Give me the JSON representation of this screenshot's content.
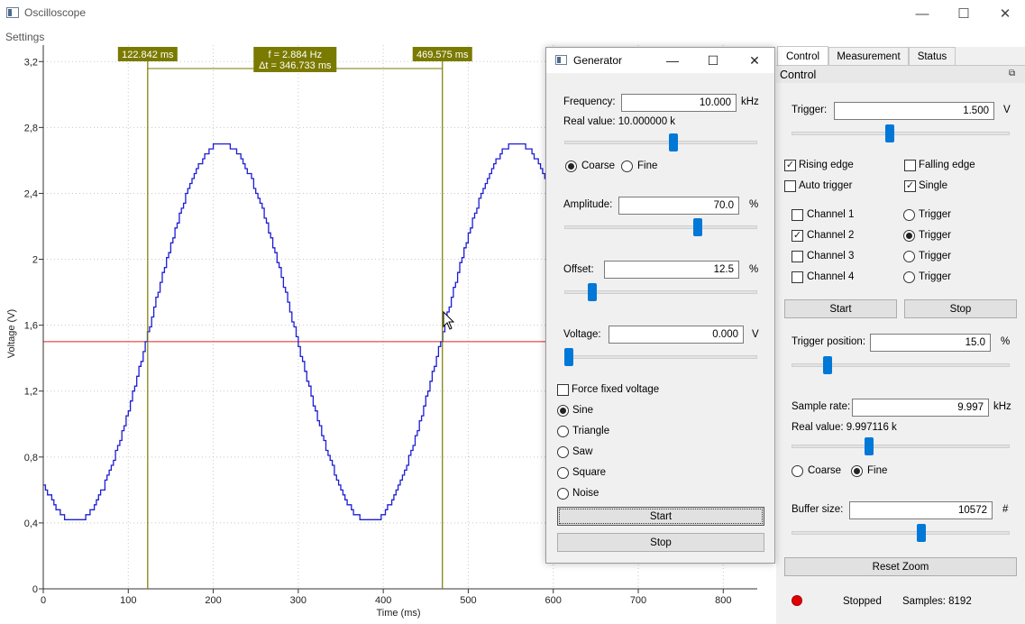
{
  "window": {
    "title": "Oscilloscope",
    "menu": {
      "settings": "Settings"
    },
    "controls": {
      "minimize": "—",
      "maximize": "☐",
      "close": "✕"
    }
  },
  "plot": {
    "y_axis_label": "Voltage (V)",
    "x_axis_label": "Time (ms)",
    "cursor_left": "122.842 ms",
    "cursor_right": "469.575 ms",
    "cursor_freq": "f = 2.884 Hz",
    "cursor_dt": "Δt = 346.733 ms",
    "colors": {
      "signal": "#1c1cd6",
      "trigger": "#e02020",
      "cursor": "#7a7a00",
      "grid": "#c8c8c8"
    }
  },
  "chart_data": {
    "type": "line",
    "xlabel": "Time (ms)",
    "ylabel": "Voltage (V)",
    "xlim": [
      0,
      840
    ],
    "ylim": [
      0,
      3.3
    ],
    "x_ticks": [
      "0",
      "100",
      "200",
      "300",
      "400",
      "500",
      "600",
      "700",
      "800"
    ],
    "y_ticks": [
      "0",
      "0,4",
      "0,8",
      "1,2",
      "1,6",
      "2",
      "2,4",
      "2,8",
      "3,2"
    ],
    "grid": true,
    "series": [
      {
        "points": [
          [
            0,
            0.69
          ],
          [
            38,
            0.41
          ],
          [
            80,
            0.68
          ],
          [
            123,
            1.5
          ],
          [
            165,
            2.33
          ],
          [
            210,
            2.71
          ],
          [
            253,
            2.33
          ],
          [
            296,
            1.5
          ],
          [
            339,
            0.68
          ],
          [
            384,
            0.41
          ],
          [
            426,
            0.68
          ],
          [
            469,
            1.5
          ],
          [
            512,
            2.33
          ],
          [
            557,
            2.71
          ],
          [
            600,
            2.61
          ]
        ]
      },
      {
        "points": [
          [
            0,
            1.5
          ],
          [
            840,
            1.5
          ]
        ]
      }
    ],
    "cursors_x": [
      122.842,
      469.575
    ]
  },
  "generator": {
    "title": "Generator",
    "frequency_label": "Frequency:",
    "frequency_value": "10.000",
    "frequency_unit": "kHz",
    "real_value": "Real value: 10.000000 k",
    "frequency_slider_level": 0.57,
    "coarse_label": "Coarse",
    "fine_label": "Fine",
    "amplitude_label": "Amplitude:",
    "amplitude_value": "70.0",
    "amplitude_unit": "%",
    "amplitude_slider_level": 0.7,
    "offset_label": "Offset:",
    "offset_value": "12.5",
    "offset_unit": "%",
    "offset_slider_level": 0.125,
    "voltage_label": "Voltage:",
    "voltage_value": "0.000",
    "voltage_unit": "V",
    "voltage_slider_level": 0.0,
    "force_fixed_label": "Force fixed voltage",
    "waveforms": [
      "Sine",
      "Triangle",
      "Saw",
      "Square",
      "Noise"
    ],
    "selected_waveform": "Sine",
    "start_label": "Start",
    "stop_label": "Stop"
  },
  "panel": {
    "tabs": [
      "Control",
      "Measurement",
      "Status"
    ],
    "active_tab": "Control",
    "dock_title": "Control",
    "trigger_label": "Trigger:",
    "trigger_value": "1.500",
    "trigger_unit": "V",
    "trigger_slider_level": 0.45,
    "rising_edge": "Rising edge",
    "falling_edge": "Falling edge",
    "auto_trigger": "Auto trigger",
    "single": "Single",
    "channels": [
      {
        "label": "Channel 1",
        "checked": false,
        "trigger_label": "Trigger",
        "trigger_selected": false
      },
      {
        "label": "Channel 2",
        "checked": true,
        "trigger_label": "Trigger",
        "trigger_selected": true
      },
      {
        "label": "Channel 3",
        "checked": false,
        "trigger_label": "Trigger",
        "trigger_selected": false
      },
      {
        "label": "Channel 4",
        "checked": false,
        "trigger_label": "Trigger",
        "trigger_selected": false
      }
    ],
    "start_label": "Start",
    "stop_label": "Stop",
    "trigger_position_label": "Trigger position:",
    "trigger_position_value": "15.0",
    "trigger_position_unit": "%",
    "trigger_position_level": 0.15,
    "sample_rate_label": "Sample rate:",
    "sample_rate_value": "9.997",
    "sample_rate_unit": "kHz",
    "sample_rate_real": "Real value: 9.997116 k",
    "sample_rate_level": 0.35,
    "coarse_label": "Coarse",
    "fine_label": "Fine",
    "buffer_size_label": "Buffer size:",
    "buffer_size_value": "10572",
    "buffer_size_unit": "#",
    "buffer_size_level": 0.6,
    "reset_zoom_label": "Reset Zoom",
    "status_text": "Stopped",
    "samples_text": "Samples: 8192",
    "status_color": "#e00000"
  }
}
